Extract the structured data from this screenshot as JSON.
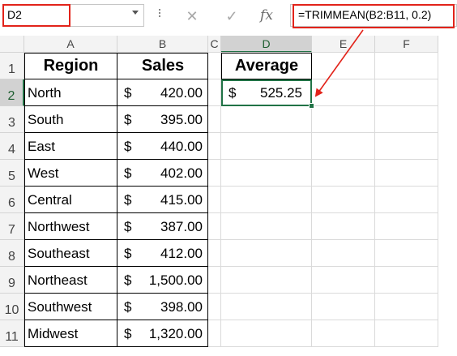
{
  "name_box": {
    "value": "D2"
  },
  "formula_bar": {
    "cancel_icon": "✕",
    "enter_icon": "✓",
    "fx_label": "fx",
    "formula": "=TRIMMEAN(B2:B11, 0.2)"
  },
  "columns": [
    "A",
    "B",
    "C",
    "D",
    "E",
    "F"
  ],
  "rows": [
    "1",
    "2",
    "3",
    "4",
    "5",
    "6",
    "7",
    "8",
    "9",
    "10",
    "11"
  ],
  "selected_cell": "D2",
  "table": {
    "headers": {
      "region": "Region",
      "sales": "Sales"
    },
    "rows": [
      {
        "region": "North",
        "currency": "$",
        "amount": "420.00"
      },
      {
        "region": "South",
        "currency": "$",
        "amount": "395.00"
      },
      {
        "region": "East",
        "currency": "$",
        "amount": "440.00"
      },
      {
        "region": "West",
        "currency": "$",
        "amount": "402.00"
      },
      {
        "region": "Central",
        "currency": "$",
        "amount": "415.00"
      },
      {
        "region": "Northwest",
        "currency": "$",
        "amount": "387.00"
      },
      {
        "region": "Southeast",
        "currency": "$",
        "amount": "412.00"
      },
      {
        "region": "Northeast",
        "currency": "$",
        "amount": "1,500.00"
      },
      {
        "region": "Southwest",
        "currency": "$",
        "amount": "398.00"
      },
      {
        "region": "Midwest",
        "currency": "$",
        "amount": "1,320.00"
      }
    ]
  },
  "result": {
    "header": "Average",
    "currency": "$",
    "amount": "525.25"
  },
  "colors": {
    "highlight": "#e2231a",
    "selection": "#217346"
  }
}
